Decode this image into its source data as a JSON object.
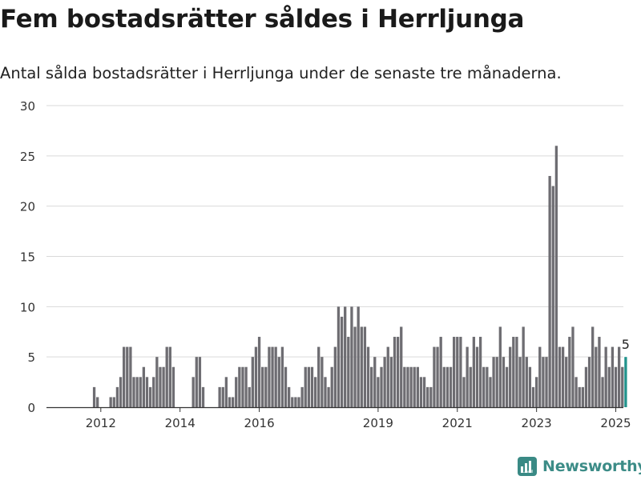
{
  "header": {
    "title": "Fem bostadsrätter såldes i Herrljunga",
    "subtitle": "Antal sålda bostadsrätter i Herrljunga under de senaste tre månaderna."
  },
  "brand": {
    "name": "Newsworthy",
    "color": "#3a8a85"
  },
  "colors": {
    "bar": "#6e6d72",
    "highlight": "#21938c",
    "grid": "#d9d9d9",
    "axis": "#333333"
  },
  "chart_data": {
    "type": "bar",
    "xlabel": "",
    "ylabel": "",
    "ylim": [
      0,
      30
    ],
    "yticks": [
      "0",
      "5",
      "10",
      "15",
      "20",
      "25",
      "30"
    ],
    "xticks": [
      {
        "label": "2012",
        "year": 2012
      },
      {
        "label": "2014",
        "year": 2014
      },
      {
        "label": "2016",
        "year": 2016
      },
      {
        "label": "2019",
        "year": 2019
      },
      {
        "label": "2021",
        "year": 2021
      },
      {
        "label": "2023",
        "year": 2023
      },
      {
        "label": "2025",
        "year": 2025
      }
    ],
    "start": "2011-05",
    "values": [
      0,
      0,
      0,
      0,
      0,
      0,
      2,
      1,
      0,
      0,
      0,
      1,
      1,
      2,
      3,
      6,
      6,
      6,
      3,
      3,
      3,
      4,
      3,
      2,
      3,
      5,
      4,
      4,
      6,
      6,
      4,
      0,
      0,
      0,
      0,
      0,
      3,
      5,
      5,
      2,
      0,
      0,
      0,
      0,
      2,
      2,
      3,
      1,
      1,
      3,
      4,
      4,
      4,
      2,
      5,
      6,
      7,
      4,
      4,
      6,
      6,
      6,
      5,
      6,
      4,
      2,
      1,
      1,
      1,
      2,
      4,
      4,
      4,
      3,
      6,
      5,
      3,
      2,
      4,
      6,
      10,
      9,
      10,
      7,
      10,
      8,
      10,
      8,
      8,
      6,
      4,
      5,
      3,
      4,
      5,
      6,
      5,
      7,
      7,
      8,
      4,
      4,
      4,
      4,
      4,
      3,
      3,
      2,
      2,
      6,
      6,
      7,
      4,
      4,
      4,
      7,
      7,
      7,
      3,
      6,
      4,
      7,
      6,
      7,
      4,
      4,
      3,
      5,
      5,
      8,
      5,
      4,
      6,
      7,
      7,
      5,
      8,
      5,
      4,
      2,
      3,
      6,
      5,
      5,
      23,
      22,
      26,
      6,
      6,
      5,
      7,
      8,
      3,
      2,
      2,
      4,
      5,
      8,
      6,
      7,
      3,
      6,
      4,
      6,
      4,
      6,
      4,
      5
    ],
    "highlight_last": true,
    "annotation": {
      "text": "5"
    }
  }
}
